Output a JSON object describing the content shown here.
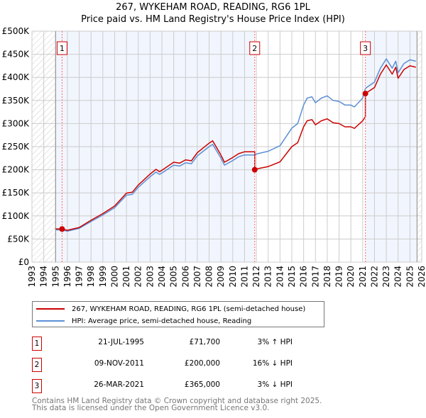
{
  "chart_data": {
    "type": "line",
    "title": "267, WYKEHAM ROAD, READING, RG6 1PL",
    "subtitle": "Price paid vs. HM Land Registry's House Price Index (HPI)",
    "xlim": [
      1993,
      2026
    ],
    "ylim": [
      0,
      500000
    ],
    "x_ticks": [
      "1993",
      "1994",
      "1995",
      "1996",
      "1997",
      "1998",
      "1999",
      "2000",
      "2001",
      "2002",
      "2003",
      "2004",
      "2005",
      "2006",
      "2007",
      "2008",
      "2009",
      "2010",
      "2011",
      "2012",
      "2013",
      "2014",
      "2015",
      "2016",
      "2017",
      "2018",
      "2019",
      "2020",
      "2021",
      "2022",
      "2023",
      "2024",
      "2025",
      "2026"
    ],
    "y_ticks": [
      {
        "v": 0,
        "label": "£0"
      },
      {
        "v": 50000,
        "label": "£50K"
      },
      {
        "v": 100000,
        "label": "£100K"
      },
      {
        "v": 150000,
        "label": "£150K"
      },
      {
        "v": 200000,
        "label": "£200K"
      },
      {
        "v": 250000,
        "label": "£250K"
      },
      {
        "v": 300000,
        "label": "£300K"
      },
      {
        "v": 350000,
        "label": "£350K"
      },
      {
        "v": 400000,
        "label": "£400K"
      },
      {
        "v": 450000,
        "label": "£450K"
      },
      {
        "v": 500000,
        "label": "£500K"
      }
    ],
    "grid": true,
    "series": [
      {
        "name": "267, WYKEHAM ROAD, READING, RG6 1PL (semi-detached house)",
        "color": "#cc0000",
        "x": [
          1995,
          1995.55,
          1996,
          1997,
          1998,
          1999,
          2000,
          2001,
          2001.5,
          2002,
          2003,
          2003.5,
          2003.8,
          2004,
          2005,
          2005.5,
          2006,
          2006.5,
          2007,
          2008,
          2008.3,
          2009,
          2009.3,
          2010,
          2010.5,
          2011,
          2011.86,
          2011.86,
          2012,
          2013,
          2014,
          2015,
          2015.5,
          2016,
          2016.3,
          2016.7,
          2017,
          2017.5,
          2018,
          2018.5,
          2019,
          2019.5,
          2020,
          2020.3,
          2021,
          2021.23,
          2021.23,
          2022,
          2022.5,
          2023,
          2023.5,
          2023.8,
          2024,
          2024.5,
          2025,
          2025.5
        ],
        "y": [
          72100,
          71700,
          69000,
          75000,
          90600,
          105000,
          121500,
          149400,
          151400,
          166900,
          190600,
          200900,
          195700,
          198800,
          216300,
          214200,
          221500,
          219400,
          236900,
          257500,
          262700,
          231800,
          216300,
          226600,
          234800,
          239000,
          239000,
          200000,
          201700,
          206900,
          217200,
          250000,
          258600,
          293000,
          306000,
          308600,
          297400,
          306000,
          310300,
          301700,
          300000,
          293000,
          293000,
          289600,
          306000,
          315000,
          365000,
          378000,
          407000,
          427000,
          407000,
          422000,
          398000,
          417000,
          425000,
          422000
        ]
      },
      {
        "name": "HPI: Average price, semi-detached house, Reading",
        "color": "#5b8fd4",
        "x": [
          1995,
          1995.55,
          1996,
          1997,
          1998,
          1999,
          2000,
          2001,
          2001.5,
          2002,
          2003,
          2003.5,
          2003.8,
          2004,
          2005,
          2005.5,
          2006,
          2006.5,
          2007,
          2008,
          2008.3,
          2009,
          2009.3,
          2010,
          2010.5,
          2011,
          2011.86,
          2012,
          2013,
          2014,
          2015,
          2015.5,
          2016,
          2016.3,
          2016.7,
          2017,
          2017.5,
          2018,
          2018.5,
          2019,
          2019.5,
          2020,
          2020.3,
          2021,
          2021.23,
          2022,
          2022.5,
          2023,
          2023.5,
          2023.8,
          2024,
          2024.5,
          2025,
          2025.5
        ],
        "y": [
          70000,
          69600,
          67000,
          73000,
          88000,
          102000,
          118000,
          145000,
          147000,
          162000,
          185000,
          195000,
          190000,
          193000,
          210000,
          208000,
          215000,
          213000,
          230000,
          250000,
          255000,
          225000,
          210000,
          220000,
          228000,
          232000,
          232000,
          234000,
          240000,
          252000,
          290000,
          300000,
          340000,
          355000,
          358000,
          345000,
          355000,
          360000,
          350000,
          348000,
          340000,
          340000,
          336000,
          355000,
          376000,
          390000,
          420000,
          440000,
          420000,
          435000,
          410000,
          430000,
          438000,
          435000
        ]
      }
    ],
    "sales": [
      {
        "num": "1",
        "x": 1995.55,
        "y": 71700,
        "date": "21-JUL-1995",
        "price": "£71,700",
        "hpi": "3% ↑ HPI"
      },
      {
        "num": "2",
        "x": 2011.86,
        "y": 200000,
        "date": "09-NOV-2011",
        "price": "£200,000",
        "hpi": "16% ↓ HPI"
      },
      {
        "num": "3",
        "x": 2021.23,
        "y": 365000,
        "date": "26-MAR-2021",
        "price": "£365,000",
        "hpi": "3% ↓ HPI"
      }
    ],
    "data_start": 1995,
    "data_end": 2025.6,
    "legend_position": "below"
  },
  "footer": {
    "line1": "Contains HM Land Registry data © Crown copyright and database right 2025.",
    "line2": "This data is licensed under the Open Government Licence v3.0."
  }
}
